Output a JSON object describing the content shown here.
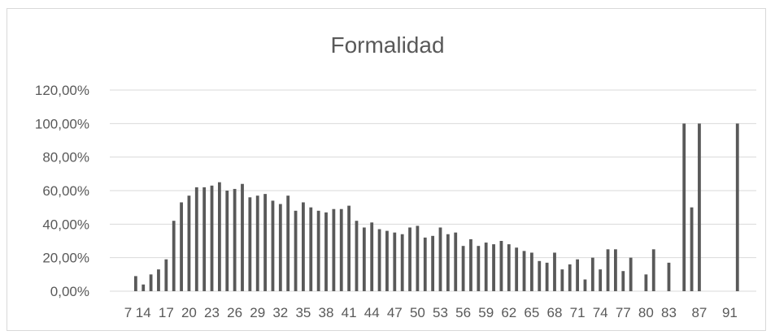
{
  "chart_data": {
    "type": "bar",
    "title": "Formalidad",
    "xlabel": "",
    "ylabel": "",
    "ylim": [
      0,
      1.2
    ],
    "y_ticks": [
      "0,00%",
      "20,00%",
      "40,00%",
      "60,00%",
      "80,00%",
      "100,00%",
      "120,00%"
    ],
    "grid": true,
    "bar_color": "#595959",
    "grid_color": "#d9d9d9",
    "x_tick_labels": [
      "7",
      "14",
      "17",
      "20",
      "23",
      "26",
      "29",
      "32",
      "35",
      "38",
      "41",
      "44",
      "47",
      "50",
      "53",
      "56",
      "59",
      "62",
      "65",
      "68",
      "71",
      "74",
      "77",
      "80",
      "83",
      "87",
      "91"
    ],
    "categories": [
      7,
      13,
      14,
      15,
      16,
      17,
      18,
      19,
      20,
      21,
      22,
      23,
      24,
      25,
      26,
      27,
      28,
      29,
      30,
      31,
      32,
      33,
      34,
      35,
      36,
      37,
      38,
      39,
      40,
      41,
      42,
      43,
      44,
      45,
      46,
      47,
      48,
      49,
      50,
      51,
      52,
      53,
      54,
      55,
      56,
      57,
      58,
      59,
      60,
      61,
      62,
      63,
      64,
      65,
      66,
      67,
      68,
      69,
      70,
      71,
      72,
      73,
      74,
      75,
      76,
      77,
      78,
      79,
      80,
      81,
      82,
      83,
      84,
      85,
      86,
      87,
      88,
      89,
      90,
      91,
      92,
      93,
      94
    ],
    "values": [
      0,
      0.09,
      0.04,
      0.1,
      0.13,
      0.19,
      0.42,
      0.53,
      0.57,
      0.62,
      0.62,
      0.63,
      0.65,
      0.6,
      0.61,
      0.64,
      0.56,
      0.57,
      0.58,
      0.54,
      0.52,
      0.57,
      0.48,
      0.53,
      0.5,
      0.48,
      0.47,
      0.49,
      0.49,
      0.51,
      0.42,
      0.38,
      0.41,
      0.37,
      0.36,
      0.35,
      0.34,
      0.38,
      0.39,
      0.32,
      0.33,
      0.38,
      0.34,
      0.35,
      0.27,
      0.31,
      0.27,
      0.29,
      0.28,
      0.3,
      0.28,
      0.26,
      0.24,
      0.23,
      0.18,
      0.17,
      0.23,
      0.13,
      0.16,
      0.19,
      0.07,
      0.2,
      0.13,
      0.25,
      0.25,
      0.12,
      0.2,
      0,
      0.1,
      0.25,
      0,
      0.17,
      0,
      1.0,
      0.5,
      1.0,
      0,
      0,
      0,
      0,
      1.0,
      0,
      0
    ]
  }
}
